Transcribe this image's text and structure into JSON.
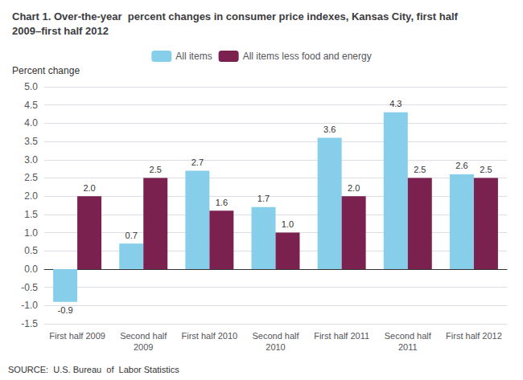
{
  "chart_data": {
    "type": "bar",
    "title": "Chart 1. Over-the-year  percent changes in consumer price indexes, Kansas City, first half 2009–first half 2012",
    "ylabel": "Percent change",
    "annotations": [
      "SOURCE:  U.S. Bureau  of  Labor Statistics"
    ],
    "categories": [
      "First half 2009",
      "Second half\n2009",
      "First half 2010",
      "Second half\n2010",
      "First half 2011",
      "Second half\n2011",
      "First half 2012"
    ],
    "series": [
      {
        "name": "All items",
        "color": "#87CEEB",
        "values": [
          -0.9,
          0.7,
          2.7,
          1.7,
          3.6,
          4.3,
          2.6
        ]
      },
      {
        "name": "All items less food and energy",
        "color": "#7B2150",
        "values": [
          2.0,
          2.5,
          1.6,
          1.0,
          2.0,
          2.5,
          2.5
        ],
        "value_labels": [
          "2.0",
          "2.5",
          "1.6",
          "1.0",
          "2.0",
          "2.5",
          "2.5"
        ]
      }
    ],
    "ylim": [
      -1.5,
      5.0
    ],
    "yticks": [
      -1.5,
      {
        "value": -1,
        "label": "-1.0"
      },
      -0.5,
      {
        "value": 0,
        "label": "0.0"
      },
      0.5,
      {
        "value": 1,
        "label": "1.0"
      },
      1.5,
      {
        "value": 2,
        "label": "2.0"
      },
      2.5,
      {
        "value": 3,
        "label": "3.0"
      },
      3.5,
      {
        "value": 4,
        "label": "4.0"
      },
      4.5,
      {
        "value": 5,
        "label": "5.0"
      }
    ],
    "grid": true,
    "legend": "upper center",
    "data_labels": true
  }
}
